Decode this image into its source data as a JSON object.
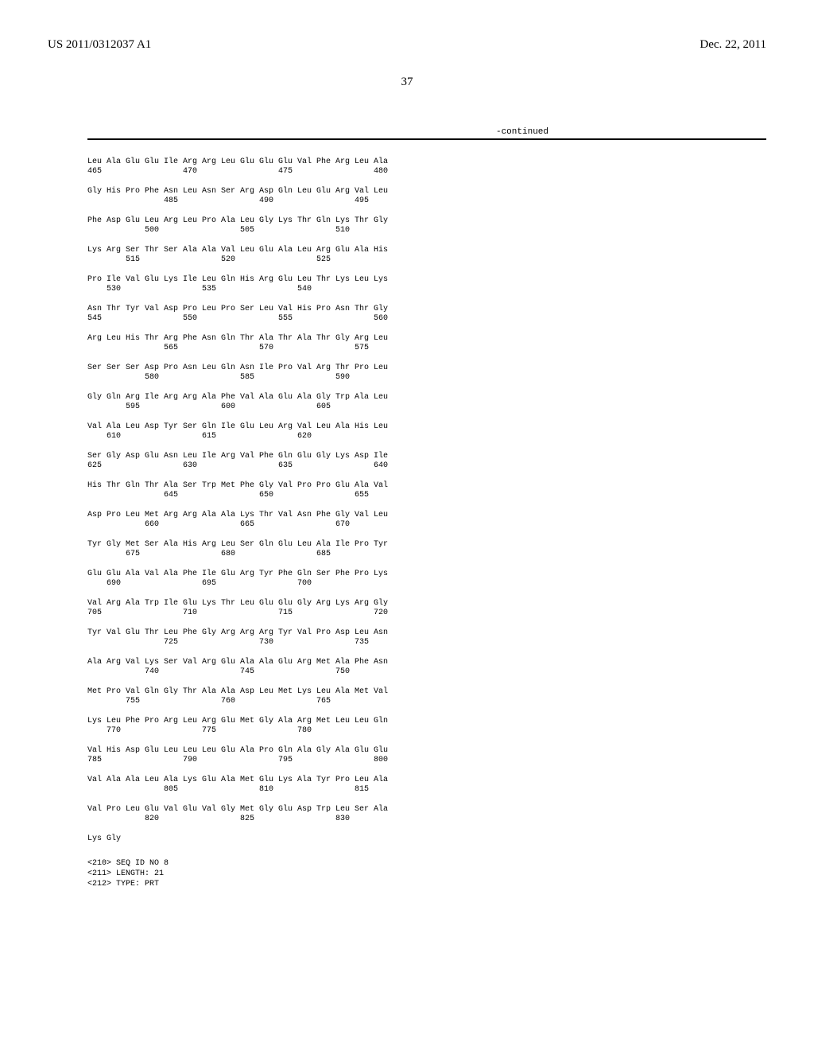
{
  "header": {
    "patent_number": "US 2011/0312037 A1",
    "date": "Dec. 22, 2011"
  },
  "page_number": "37",
  "continued_label": "-continued",
  "sequence": {
    "rows": [
      {
        "residues": "Leu Ala Glu Glu Ile Arg Arg Leu Glu Glu Glu Val Phe Arg Leu Ala",
        "numbers": "465                 470                 475                 480"
      },
      {
        "residues": "Gly His Pro Phe Asn Leu Asn Ser Arg Asp Gln Leu Glu Arg Val Leu",
        "numbers": "                485                 490                 495"
      },
      {
        "residues": "Phe Asp Glu Leu Arg Leu Pro Ala Leu Gly Lys Thr Gln Lys Thr Gly",
        "numbers": "            500                 505                 510"
      },
      {
        "residues": "Lys Arg Ser Thr Ser Ala Ala Val Leu Glu Ala Leu Arg Glu Ala His",
        "numbers": "        515                 520                 525"
      },
      {
        "residues": "Pro Ile Val Glu Lys Ile Leu Gln His Arg Glu Leu Thr Lys Leu Lys",
        "numbers": "    530                 535                 540"
      },
      {
        "residues": "Asn Thr Tyr Val Asp Pro Leu Pro Ser Leu Val His Pro Asn Thr Gly",
        "numbers": "545                 550                 555                 560"
      },
      {
        "residues": "Arg Leu His Thr Arg Phe Asn Gln Thr Ala Thr Ala Thr Gly Arg Leu",
        "numbers": "                565                 570                 575"
      },
      {
        "residues": "Ser Ser Ser Asp Pro Asn Leu Gln Asn Ile Pro Val Arg Thr Pro Leu",
        "numbers": "            580                 585                 590"
      },
      {
        "residues": "Gly Gln Arg Ile Arg Arg Ala Phe Val Ala Glu Ala Gly Trp Ala Leu",
        "numbers": "        595                 600                 605"
      },
      {
        "residues": "Val Ala Leu Asp Tyr Ser Gln Ile Glu Leu Arg Val Leu Ala His Leu",
        "numbers": "    610                 615                 620"
      },
      {
        "residues": "Ser Gly Asp Glu Asn Leu Ile Arg Val Phe Gln Glu Gly Lys Asp Ile",
        "numbers": "625                 630                 635                 640"
      },
      {
        "residues": "His Thr Gln Thr Ala Ser Trp Met Phe Gly Val Pro Pro Glu Ala Val",
        "numbers": "                645                 650                 655"
      },
      {
        "residues": "Asp Pro Leu Met Arg Arg Ala Ala Lys Thr Val Asn Phe Gly Val Leu",
        "numbers": "            660                 665                 670"
      },
      {
        "residues": "Tyr Gly Met Ser Ala His Arg Leu Ser Gln Glu Leu Ala Ile Pro Tyr",
        "numbers": "        675                 680                 685"
      },
      {
        "residues": "Glu Glu Ala Val Ala Phe Ile Glu Arg Tyr Phe Gln Ser Phe Pro Lys",
        "numbers": "    690                 695                 700"
      },
      {
        "residues": "Val Arg Ala Trp Ile Glu Lys Thr Leu Glu Glu Gly Arg Lys Arg Gly",
        "numbers": "705                 710                 715                 720"
      },
      {
        "residues": "Tyr Val Glu Thr Leu Phe Gly Arg Arg Arg Tyr Val Pro Asp Leu Asn",
        "numbers": "                725                 730                 735"
      },
      {
        "residues": "Ala Arg Val Lys Ser Val Arg Glu Ala Ala Glu Arg Met Ala Phe Asn",
        "numbers": "            740                 745                 750"
      },
      {
        "residues": "Met Pro Val Gln Gly Thr Ala Ala Asp Leu Met Lys Leu Ala Met Val",
        "numbers": "        755                 760                 765"
      },
      {
        "residues": "Lys Leu Phe Pro Arg Leu Arg Glu Met Gly Ala Arg Met Leu Leu Gln",
        "numbers": "    770                 775                 780"
      },
      {
        "residues": "Val His Asp Glu Leu Leu Leu Glu Ala Pro Gln Ala Gly Ala Glu Glu",
        "numbers": "785                 790                 795                 800"
      },
      {
        "residues": "Val Ala Ala Leu Ala Lys Glu Ala Met Glu Lys Ala Tyr Pro Leu Ala",
        "numbers": "                805                 810                 815"
      },
      {
        "residues": "Val Pro Leu Glu Val Glu Val Gly Met Gly Glu Asp Trp Leu Ser Ala",
        "numbers": "            820                 825                 830"
      },
      {
        "residues": "Lys Gly",
        "numbers": ""
      }
    ]
  },
  "metadata": {
    "line1": "<210> SEQ ID NO 8",
    "line2": "<211> LENGTH: 21",
    "line3": "<212> TYPE: PRT"
  }
}
